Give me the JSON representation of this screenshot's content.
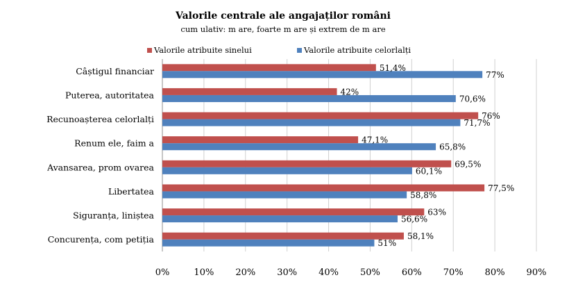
{
  "chart_data": {
    "type": "bar",
    "orientation": "horizontal",
    "title": "Valorile centrale ale angajaților români",
    "subtitle": "cum ulativ: m are, foarte m are și extrem  de m are",
    "categories": [
      "Câștigul financiar",
      "Puterea, autoritatea",
      "Recunoașterea celorlalți",
      "Renum ele, faim a",
      "Avansarea, prom ovarea",
      "Libertatea",
      "Siguranța, liniștea",
      "Concurența, com petiția"
    ],
    "series": [
      {
        "name": "Valorile atribuite sinelui",
        "color": "#C0504D",
        "values": [
          51.4,
          42,
          76,
          47.1,
          69.5,
          77.5,
          63,
          58.1
        ],
        "labels": [
          "51,4%",
          "42%",
          "76%",
          "47,1%",
          "69,5%",
          "77,5%",
          "63%",
          "58,1%"
        ]
      },
      {
        "name": "Valorile atribuite celorlalți",
        "color": "#4F81BD",
        "values": [
          77,
          70.6,
          71.7,
          65.8,
          60.1,
          58.8,
          56.6,
          51
        ],
        "labels": [
          "77%",
          "70,6%",
          "71,7%",
          "65,8%",
          "60,1%",
          "58,8%",
          "56,6%",
          "51%"
        ]
      }
    ],
    "xlim": [
      0,
      90
    ],
    "xticks": [
      "0%",
      "10%",
      "20%",
      "30%",
      "40%",
      "50%",
      "60%",
      "70%",
      "80%",
      "90%"
    ],
    "grid": true,
    "legend_position": "top"
  }
}
